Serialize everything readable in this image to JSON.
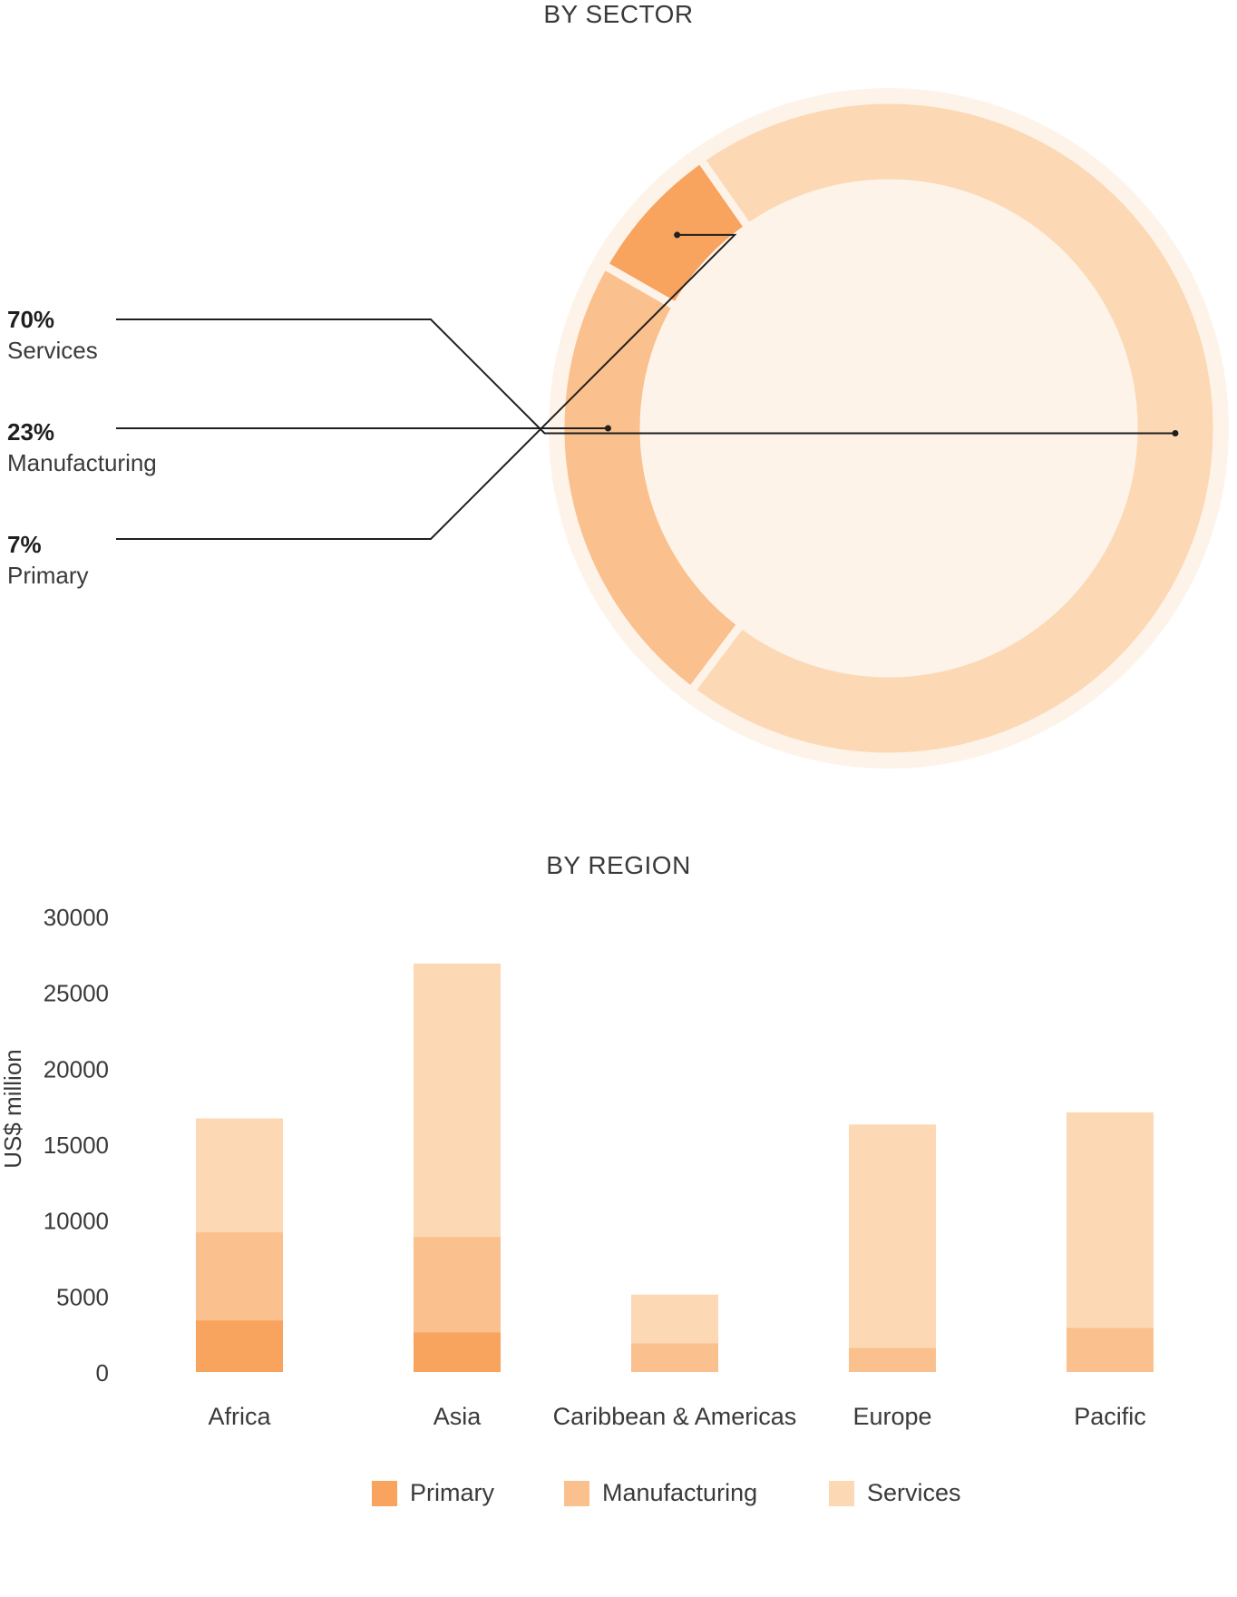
{
  "colors": {
    "primary": "#F8A35E",
    "manufacturing": "#FAC08D",
    "services": "#FCD8B5",
    "ring_background": "#FDF3E8"
  },
  "sector": {
    "title": "BY SECTOR",
    "items": [
      {
        "pct": "70%",
        "label": "Services"
      },
      {
        "pct": "23%",
        "label": "Manufacturing"
      },
      {
        "pct": "7%",
        "label": "Primary"
      }
    ]
  },
  "region": {
    "title": "BY REGION"
  },
  "legend": {
    "primary": "Primary",
    "manufacturing": "Manufacturing",
    "services": "Services"
  },
  "chart_data": [
    {
      "type": "pie",
      "title": "BY SECTOR",
      "categories": [
        "Services",
        "Manufacturing",
        "Primary"
      ],
      "values": [
        70,
        23,
        7
      ],
      "unit": "%"
    },
    {
      "type": "bar",
      "stacked": true,
      "title": "BY REGION",
      "xlabel": "",
      "ylabel": "US$ million",
      "ylim": [
        0,
        30000
      ],
      "yticks": [
        0,
        5000,
        10000,
        15000,
        20000,
        25000,
        30000
      ],
      "categories": [
        "Africa",
        "Asia",
        "Caribbean & Americas",
        "Europe",
        "Pacific"
      ],
      "series": [
        {
          "name": "Primary",
          "values": [
            3400,
            2600,
            0,
            0,
            0
          ]
        },
        {
          "name": "Manufacturing",
          "values": [
            5800,
            6300,
            1900,
            1600,
            2900
          ]
        },
        {
          "name": "Services",
          "values": [
            7500,
            18000,
            3200,
            14700,
            14200
          ]
        }
      ],
      "legend": "bottom",
      "grid": false
    }
  ]
}
